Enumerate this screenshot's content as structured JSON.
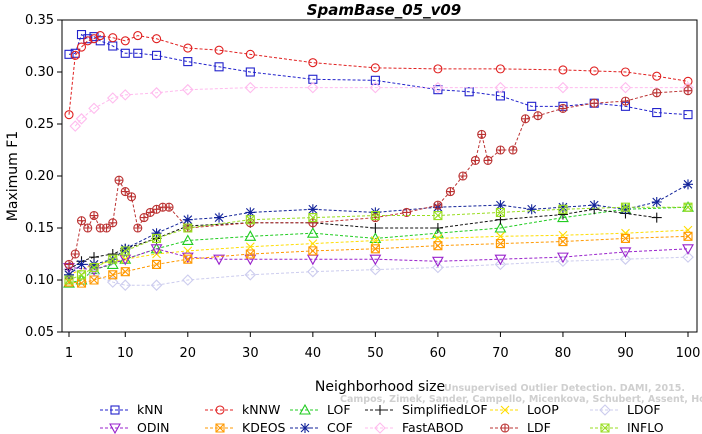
{
  "chart_data": {
    "type": "line",
    "title": "SpamBase_05_v09",
    "xlabel": "Neighborhood size",
    "ylabel": "Maximum F1",
    "xlim": [
      1,
      100
    ],
    "ylim": [
      0.05,
      0.35
    ],
    "xticks": [
      1,
      10,
      20,
      30,
      40,
      50,
      60,
      70,
      80,
      90,
      100
    ],
    "yticks": [
      "0.05",
      "0.10",
      "0.15",
      "0.20",
      "0.25",
      "0.30",
      "0.35"
    ],
    "grid": false,
    "legend_position": "bottom",
    "watermark": [
      "Unsupervised Outlier Detection. DAMI, 2015.",
      "Campos, Zimek, Sander, Campello, Micenkova, Schubert, Assent, Houle"
    ],
    "series": [
      {
        "name": "kNN",
        "color": "#2222cc",
        "marker": "square",
        "x": [
          1,
          2,
          3,
          4,
          5,
          6,
          8,
          10,
          12,
          15,
          20,
          25,
          30,
          40,
          50,
          60,
          65,
          70,
          75,
          80,
          85,
          90,
          95,
          100
        ],
        "y": [
          0.317,
          0.318,
          0.336,
          0.332,
          0.334,
          0.33,
          0.325,
          0.318,
          0.318,
          0.316,
          0.31,
          0.305,
          0.3,
          0.293,
          0.292,
          0.283,
          0.281,
          0.277,
          0.267,
          0.267,
          0.27,
          0.267,
          0.261,
          0.259
        ]
      },
      {
        "name": "kNNW",
        "color": "#e02020",
        "marker": "circle",
        "x": [
          1,
          2,
          3,
          4,
          5,
          6,
          8,
          10,
          12,
          15,
          20,
          25,
          30,
          40,
          50,
          60,
          70,
          80,
          85,
          90,
          95,
          100
        ],
        "y": [
          0.259,
          0.316,
          0.324,
          0.33,
          0.332,
          0.335,
          0.333,
          0.33,
          0.335,
          0.332,
          0.323,
          0.321,
          0.317,
          0.309,
          0.304,
          0.303,
          0.303,
          0.302,
          0.301,
          0.3,
          0.296,
          0.291
        ]
      },
      {
        "name": "LOF",
        "color": "#22cc22",
        "marker": "triangle",
        "x": [
          1,
          3,
          5,
          8,
          10,
          15,
          20,
          30,
          40,
          50,
          60,
          70,
          80,
          90,
          100
        ],
        "y": [
          0.097,
          0.1,
          0.11,
          0.115,
          0.12,
          0.13,
          0.138,
          0.142,
          0.145,
          0.14,
          0.145,
          0.15,
          0.16,
          0.168,
          0.17
        ]
      },
      {
        "name": "SimplifiedLOF",
        "color": "#111111",
        "marker": "plus",
        "x": [
          1,
          3,
          5,
          8,
          10,
          15,
          20,
          30,
          40,
          50,
          60,
          70,
          80,
          85,
          90,
          95
        ],
        "y": [
          0.11,
          0.118,
          0.122,
          0.125,
          0.13,
          0.14,
          0.152,
          0.155,
          0.155,
          0.15,
          0.15,
          0.158,
          0.163,
          0.168,
          0.164,
          0.16
        ]
      },
      {
        "name": "LoOP",
        "color": "#ffdd00",
        "marker": "x",
        "x": [
          1,
          5,
          10,
          15,
          20,
          30,
          40,
          50,
          60,
          70,
          80,
          90,
          100
        ],
        "y": [
          0.105,
          0.115,
          0.12,
          0.125,
          0.128,
          0.132,
          0.135,
          0.138,
          0.14,
          0.142,
          0.143,
          0.145,
          0.148
        ]
      },
      {
        "name": "LDOF",
        "color": "#ccccee",
        "marker": "diamond",
        "x": [
          1,
          5,
          8,
          10,
          15,
          20,
          30,
          40,
          50,
          60,
          70,
          80,
          90,
          100
        ],
        "y": [
          0.11,
          0.105,
          0.098,
          0.095,
          0.095,
          0.1,
          0.105,
          0.108,
          0.11,
          0.112,
          0.115,
          0.118,
          0.12,
          0.122
        ]
      },
      {
        "name": "ODIN",
        "color": "#9922cc",
        "marker": "triangle-down",
        "x": [
          1,
          5,
          10,
          15,
          20,
          25,
          30,
          40,
          50,
          60,
          70,
          80,
          90,
          100
        ],
        "y": [
          0.112,
          0.11,
          0.12,
          0.13,
          0.122,
          0.12,
          0.12,
          0.12,
          0.12,
          0.118,
          0.12,
          0.122,
          0.127,
          0.13
        ]
      },
      {
        "name": "KDEOS",
        "color": "#ff9900",
        "marker": "square-x",
        "x": [
          1,
          3,
          5,
          8,
          10,
          15,
          20,
          30,
          40,
          50,
          60,
          70,
          80,
          90,
          100
        ],
        "y": [
          0.098,
          0.097,
          0.1,
          0.105,
          0.108,
          0.115,
          0.12,
          0.125,
          0.128,
          0.13,
          0.133,
          0.135,
          0.137,
          0.14,
          0.142
        ]
      },
      {
        "name": "COF",
        "color": "#112299",
        "marker": "star",
        "x": [
          1,
          3,
          5,
          8,
          10,
          15,
          20,
          25,
          30,
          40,
          50,
          60,
          70,
          75,
          80,
          85,
          90,
          95,
          100
        ],
        "y": [
          0.105,
          0.115,
          0.115,
          0.12,
          0.13,
          0.145,
          0.158,
          0.16,
          0.165,
          0.168,
          0.165,
          0.17,
          0.172,
          0.168,
          0.17,
          0.172,
          0.168,
          0.175,
          0.192
        ]
      },
      {
        "name": "FastABOD",
        "color": "#ffbbee",
        "marker": "diamond",
        "x": [
          2,
          3,
          5,
          8,
          10,
          15,
          20,
          30,
          40,
          50,
          60,
          70,
          80,
          90,
          100
        ],
        "y": [
          0.248,
          0.255,
          0.265,
          0.275,
          0.278,
          0.28,
          0.283,
          0.285,
          0.285,
          0.285,
          0.285,
          0.285,
          0.285,
          0.285,
          0.285
        ]
      },
      {
        "name": "LDF",
        "color": "#bb3333",
        "marker": "circle-plus",
        "x": [
          1,
          2,
          3,
          4,
          5,
          6,
          7,
          8,
          9,
          10,
          11,
          12,
          13,
          14,
          15,
          16,
          17,
          20,
          30,
          40,
          50,
          55,
          60,
          62,
          64,
          66,
          67,
          68,
          70,
          72,
          74,
          76,
          80,
          85,
          90,
          95,
          100
        ],
        "y": [
          0.115,
          0.125,
          0.157,
          0.15,
          0.162,
          0.15,
          0.15,
          0.155,
          0.196,
          0.185,
          0.18,
          0.15,
          0.16,
          0.165,
          0.168,
          0.17,
          0.17,
          0.15,
          0.155,
          0.155,
          0.16,
          0.165,
          0.172,
          0.185,
          0.2,
          0.215,
          0.24,
          0.215,
          0.225,
          0.225,
          0.255,
          0.258,
          0.265,
          0.27,
          0.272,
          0.28,
          0.282
        ]
      },
      {
        "name": "INFLO",
        "color": "#99dd22",
        "marker": "square-x",
        "x": [
          1,
          3,
          5,
          8,
          10,
          15,
          20,
          30,
          40,
          50,
          60,
          70,
          80,
          90,
          100
        ],
        "y": [
          0.1,
          0.105,
          0.112,
          0.12,
          0.128,
          0.14,
          0.15,
          0.158,
          0.16,
          0.162,
          0.162,
          0.165,
          0.168,
          0.17,
          0.17
        ]
      }
    ]
  }
}
